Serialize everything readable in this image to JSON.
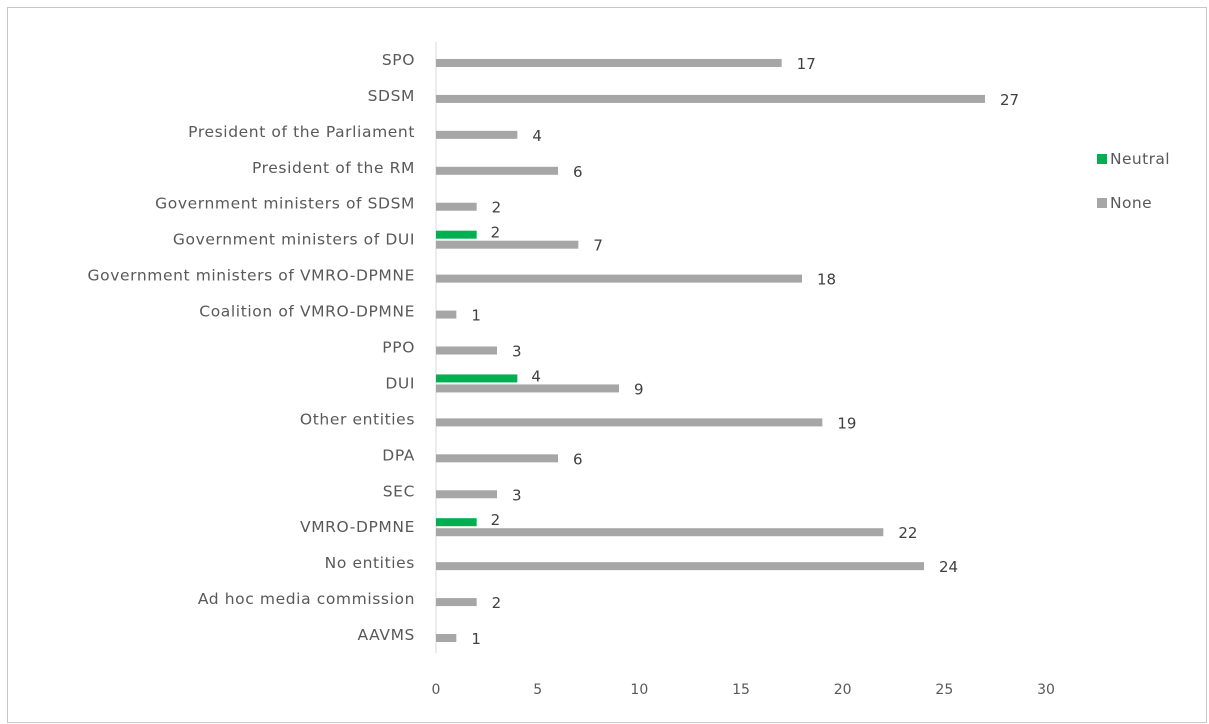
{
  "chart_data": {
    "type": "bar",
    "orientation": "horizontal",
    "categories": [
      "SPO",
      "SDSM",
      "President of the Parliament",
      "President of the RM",
      "Government ministers of SDSM",
      "Government ministers of DUI",
      "Government ministers of VMRO-DPMNE",
      "Coalition of VMRO-DPMNE",
      "PPO",
      "DUI",
      "Other entities",
      "DPA",
      "SEC",
      "VMRO-DPMNE",
      "No entities",
      "Ad hoc media commission",
      "AAVMS"
    ],
    "series": [
      {
        "name": "Neutral",
        "color": "#00b050",
        "values": [
          null,
          null,
          null,
          null,
          null,
          2,
          null,
          null,
          null,
          4,
          null,
          null,
          null,
          2,
          null,
          null,
          null
        ]
      },
      {
        "name": "None",
        "color": "#a6a6a6",
        "values": [
          17,
          27,
          4,
          6,
          2,
          7,
          18,
          1,
          3,
          9,
          19,
          6,
          3,
          22,
          24,
          2,
          1
        ]
      }
    ],
    "xlim": [
      0,
      30
    ],
    "x_ticks": [
      "0",
      "5",
      "10",
      "15",
      "20",
      "25",
      "30"
    ],
    "grid": false,
    "legend_position": "right",
    "data_labels": true
  }
}
